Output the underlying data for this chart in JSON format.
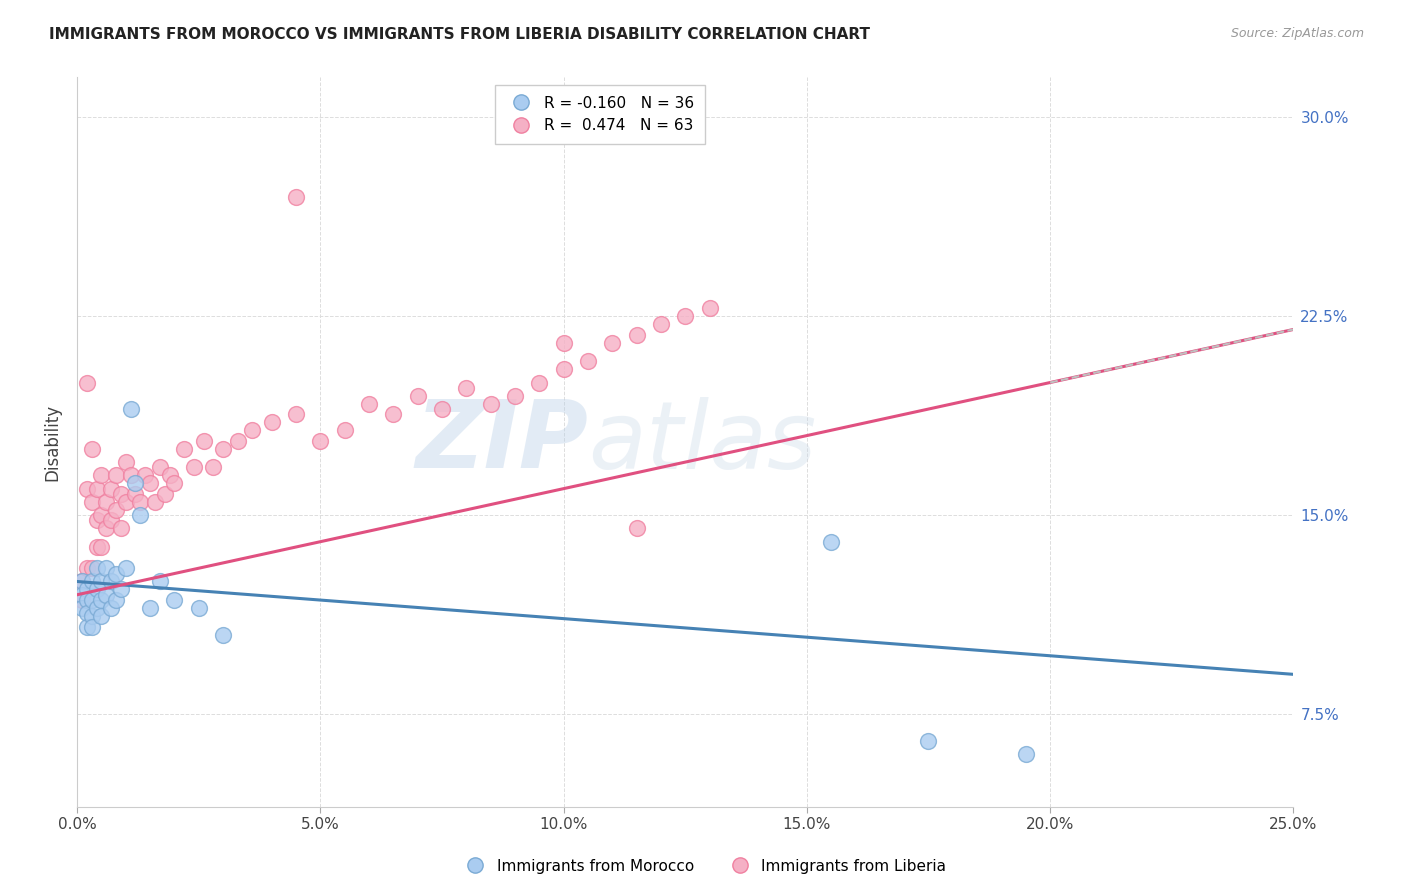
{
  "title": "IMMIGRANTS FROM MOROCCO VS IMMIGRANTS FROM LIBERIA DISABILITY CORRELATION CHART",
  "source": "Source: ZipAtlas.com",
  "ylabel": "Disability",
  "xlabel_ticks": [
    "0.0%",
    "5.0%",
    "10.0%",
    "15.0%",
    "20.0%",
    "25.0%"
  ],
  "ylabel_ticks": [
    "7.5%",
    "15.0%",
    "22.5%",
    "30.0%"
  ],
  "xlim": [
    0.0,
    0.25
  ],
  "ylim": [
    0.04,
    0.315
  ],
  "legend1_r": "-0.160",
  "legend1_n": "36",
  "legend2_r": "0.474",
  "legend2_n": "63",
  "legend_label1": "Immigrants from Morocco",
  "legend_label2": "Immigrants from Liberia",
  "morocco_color": "#aaccf0",
  "liberia_color": "#f5b0c5",
  "morocco_edge": "#7aaad4",
  "liberia_edge": "#f080a0",
  "trendline_morocco_color": "#4682b4",
  "trendline_liberia_color": "#e05080",
  "trendline_dashed_color": "#c0c0c0",
  "watermark_zip": "ZIP",
  "watermark_atlas": "atlas",
  "background_color": "#ffffff",
  "grid_color": "#dddddd",
  "morocco_x": [
    0.001,
    0.001,
    0.001,
    0.002,
    0.002,
    0.002,
    0.002,
    0.003,
    0.003,
    0.003,
    0.003,
    0.004,
    0.004,
    0.004,
    0.005,
    0.005,
    0.005,
    0.006,
    0.006,
    0.007,
    0.007,
    0.008,
    0.008,
    0.009,
    0.01,
    0.011,
    0.012,
    0.013,
    0.015,
    0.017,
    0.02,
    0.025,
    0.03,
    0.155,
    0.175,
    0.195
  ],
  "morocco_y": [
    0.125,
    0.12,
    0.115,
    0.122,
    0.118,
    0.113,
    0.108,
    0.125,
    0.118,
    0.112,
    0.108,
    0.13,
    0.122,
    0.115,
    0.125,
    0.118,
    0.112,
    0.13,
    0.12,
    0.125,
    0.115,
    0.128,
    0.118,
    0.122,
    0.13,
    0.19,
    0.162,
    0.15,
    0.115,
    0.125,
    0.118,
    0.115,
    0.105,
    0.14,
    0.065,
    0.06
  ],
  "liberia_x": [
    0.001,
    0.001,
    0.002,
    0.002,
    0.002,
    0.003,
    0.003,
    0.003,
    0.004,
    0.004,
    0.004,
    0.005,
    0.005,
    0.005,
    0.006,
    0.006,
    0.007,
    0.007,
    0.008,
    0.008,
    0.009,
    0.009,
    0.01,
    0.01,
    0.011,
    0.012,
    0.013,
    0.014,
    0.015,
    0.016,
    0.017,
    0.018,
    0.019,
    0.02,
    0.022,
    0.024,
    0.026,
    0.028,
    0.03,
    0.033,
    0.036,
    0.04,
    0.045,
    0.05,
    0.055,
    0.06,
    0.065,
    0.07,
    0.075,
    0.08,
    0.085,
    0.09,
    0.095,
    0.1,
    0.105,
    0.11,
    0.115,
    0.12,
    0.125,
    0.13,
    0.1,
    0.115,
    0.045
  ],
  "liberia_y": [
    0.125,
    0.118,
    0.2,
    0.16,
    0.13,
    0.175,
    0.155,
    0.13,
    0.16,
    0.148,
    0.138,
    0.165,
    0.15,
    0.138,
    0.155,
    0.145,
    0.16,
    0.148,
    0.165,
    0.152,
    0.158,
    0.145,
    0.17,
    0.155,
    0.165,
    0.158,
    0.155,
    0.165,
    0.162,
    0.155,
    0.168,
    0.158,
    0.165,
    0.162,
    0.175,
    0.168,
    0.178,
    0.168,
    0.175,
    0.178,
    0.182,
    0.185,
    0.188,
    0.178,
    0.182,
    0.192,
    0.188,
    0.195,
    0.19,
    0.198,
    0.192,
    0.195,
    0.2,
    0.205,
    0.208,
    0.215,
    0.218,
    0.222,
    0.225,
    0.228,
    0.215,
    0.145,
    0.27
  ]
}
